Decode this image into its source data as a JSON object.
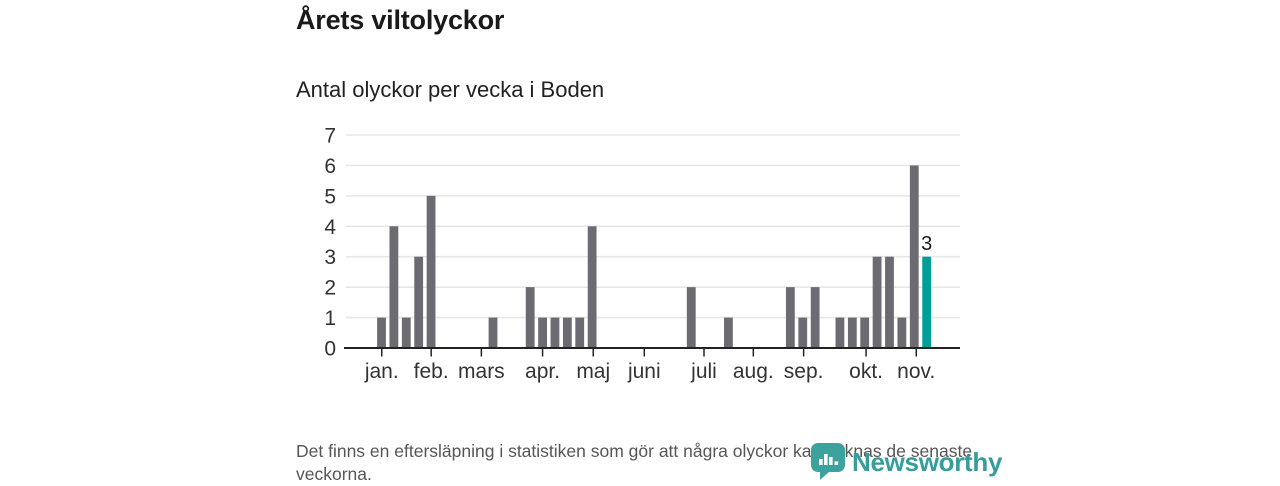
{
  "chart_data": {
    "type": "bar",
    "title": "Årets viltolyckor",
    "subtitle": "Antal olyckor per vecka i Boden",
    "x_unit": "vecka",
    "x": [
      1,
      2,
      3,
      4,
      5,
      6,
      7,
      8,
      9,
      10,
      11,
      12,
      13,
      14,
      15,
      16,
      17,
      18,
      19,
      20,
      21,
      22,
      23,
      24,
      25,
      26,
      27,
      28,
      29,
      30,
      31,
      32,
      33,
      34,
      35,
      36,
      37,
      38,
      39,
      40,
      41,
      42,
      43,
      44,
      45
    ],
    "values": [
      1,
      4,
      1,
      3,
      5,
      0,
      0,
      0,
      0,
      1,
      0,
      0,
      2,
      1,
      1,
      1,
      1,
      4,
      0,
      0,
      0,
      0,
      0,
      0,
      0,
      2,
      0,
      0,
      1,
      0,
      0,
      0,
      0,
      2,
      1,
      2,
      0,
      1,
      1,
      1,
      3,
      3,
      1,
      6,
      3
    ],
    "highlight_week": 45,
    "annotation": {
      "text": "3",
      "week": 45
    },
    "ylim": [
      0,
      7
    ],
    "yticks": [
      0,
      1,
      2,
      3,
      4,
      5,
      6,
      7
    ],
    "grid": true,
    "legend": false,
    "month_ticks": [
      {
        "label": "jan.",
        "week": 1.02
      },
      {
        "label": "feb.",
        "week": 5.01
      },
      {
        "label": "mars",
        "week": 9.06
      },
      {
        "label": "apr.",
        "week": 14.0
      },
      {
        "label": "maj",
        "week": 18.09
      },
      {
        "label": "juni",
        "week": 22.21
      },
      {
        "label": "juli",
        "week": 27.03
      },
      {
        "label": "aug.",
        "week": 31.01
      },
      {
        "label": "sep.",
        "week": 35.07
      },
      {
        "label": "okt.",
        "week": 40.11
      },
      {
        "label": "nov.",
        "week": 44.16
      }
    ],
    "colors": {
      "bar": "#6b6b71",
      "highlight": "#00a099",
      "grid": "#e7e7e7",
      "axis": "#222222",
      "tick_label": "#333333",
      "annotation": "#1a1a1a"
    }
  },
  "footer": {
    "text": "Det finns en eftersläpning i statistiken som gör att några olyckor kan saknas de senaste veckorna."
  },
  "logo": {
    "text": "Newsworthy",
    "color": "#359e9b"
  }
}
